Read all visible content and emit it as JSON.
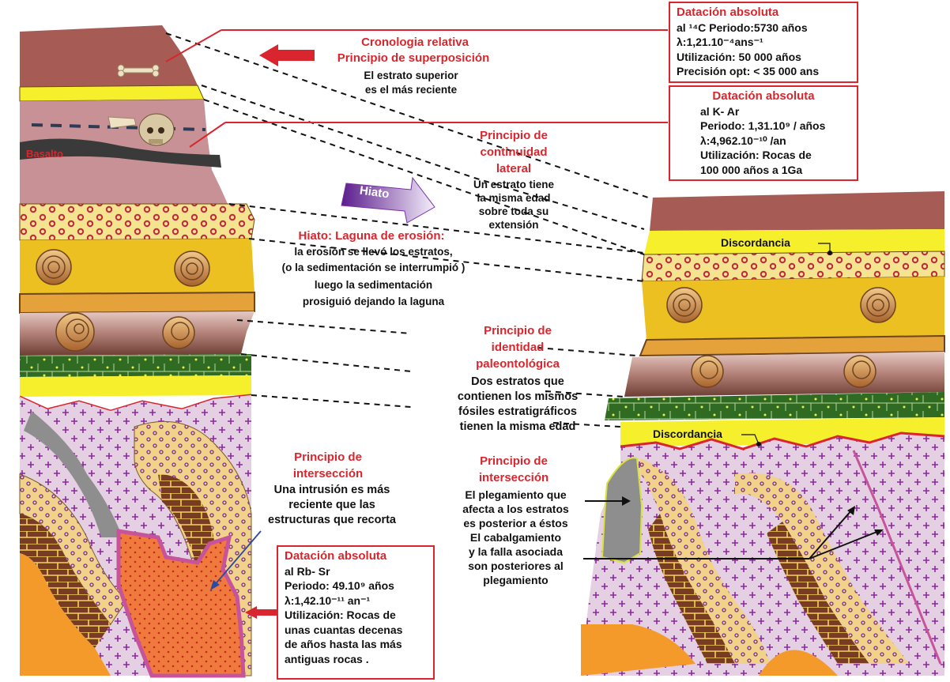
{
  "boxes": {
    "c14": {
      "title": "Datación absoluta",
      "lines": [
        "al ¹⁴C  Periodo:5730 años",
        "λ:1,21.10⁻⁴ans⁻¹",
        "Utilización: 50 000 años",
        "Precisión opt: < 35 000 ans"
      ]
    },
    "kar": {
      "title": "Datación absoluta",
      "lines": [
        "al  K- Ar",
        "Periodo: 1,31.10⁹ / años",
        "λ:4,962.10⁻¹⁰ /an",
        "Utilización: Rocas de",
        "100 000 años a 1Ga"
      ]
    },
    "rbsr": {
      "title": "Datación absoluta",
      "lines": [
        "al  Rb- Sr",
        "Periodo: 49.10⁹ años",
        "λ:1,42.10⁻¹¹ an⁻¹",
        "Utilización: Rocas de",
        "unas cuantas decenas",
        "de años hasta las más",
        "antiguas rocas ."
      ]
    }
  },
  "principles": {
    "superposition": {
      "title1": "Cronologia relativa",
      "title2": "Principio de superposición",
      "text": [
        "El estrato superior",
        "es el más reciente"
      ]
    },
    "continuity": {
      "title": [
        "Principio de",
        "continuidad",
        "lateral"
      ],
      "text": [
        "Un estrato tiene",
        "la misma edad",
        "sobre toda su",
        "extensión"
      ]
    },
    "hiatus": {
      "title": "Hiato: Laguna de erosión:",
      "text": [
        "la erosión se llevó los estratos,",
        "(o la sedimentación se interrumpió )",
        "luego la sedimentación",
        "prosiguió dejando la laguna"
      ]
    },
    "paleo": {
      "title": [
        "Principio de",
        "identidad",
        "paleontológica"
      ],
      "text": [
        "Dos estratos que",
        "contienen  los mismos",
        "fósiles estratigráficos",
        "tienen la misma edad"
      ]
    },
    "intersection_left": {
      "title": [
        "Principio de",
        "intersección"
      ],
      "text": [
        "Una intrusión es más",
        "reciente que las",
        "estructuras que recorta"
      ]
    },
    "intersection_right": {
      "title": [
        "Principio de",
        "intersección"
      ],
      "text": [
        "El plegamiento que",
        "afecta a los estratos",
        "es posterior a éstos",
        "El cabalgamiento",
        "y la falla asociada",
        "son posteriores al",
        "plegamiento"
      ]
    }
  },
  "labels": {
    "basalt": "Basalto",
    "hiato": "Hiato",
    "discord1": "Discordancia",
    "discord2": "Discordancia"
  },
  "colors": {
    "accent_red": "#d9262e",
    "hiato_arrow": "#7b2fa8"
  }
}
